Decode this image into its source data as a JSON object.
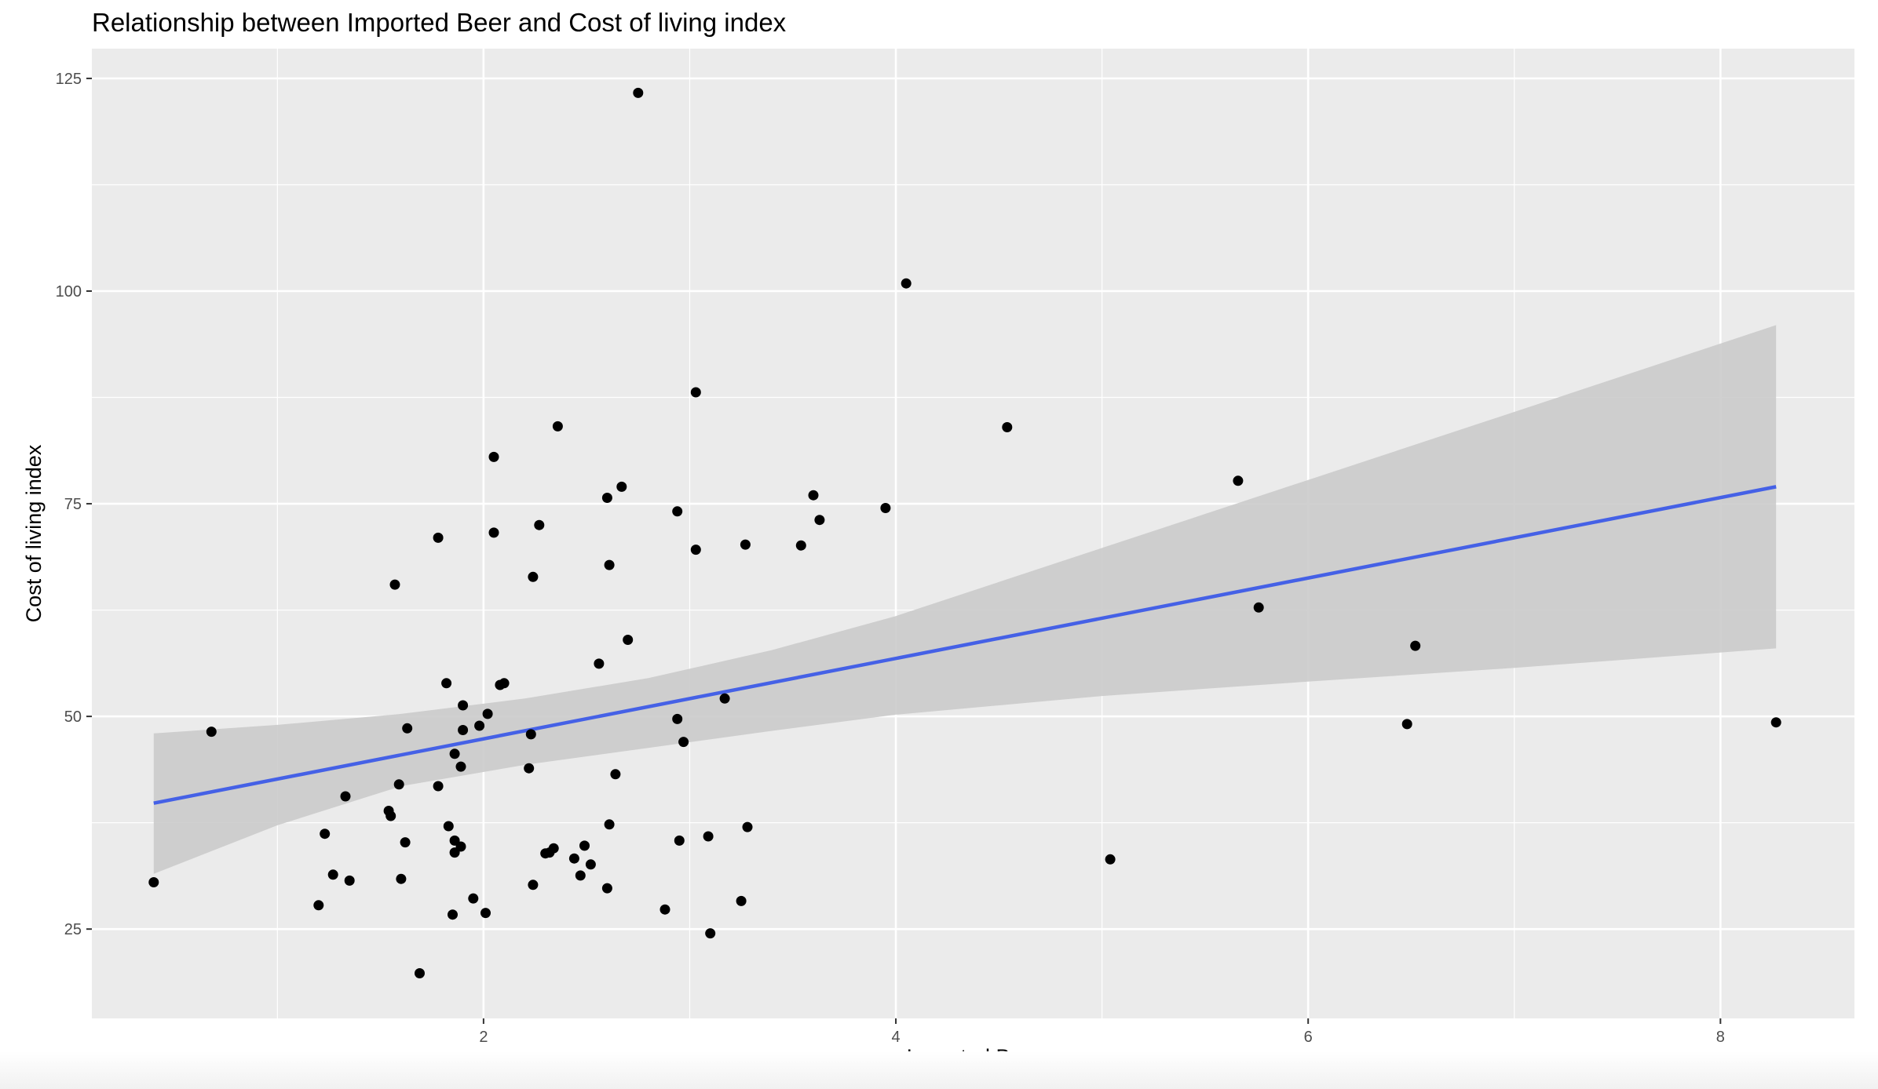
{
  "chart_data": {
    "type": "scatter",
    "title": "Relationship between Imported Beer and Cost of living index",
    "xlabel": "Imported Beer",
    "ylabel": "Cost of living index",
    "xlim": [
      0.1,
      8.65
    ],
    "ylim": [
      14.5,
      128.5
    ],
    "x_ticks": [
      2,
      4,
      6,
      8
    ],
    "y_ticks": [
      25,
      50,
      75,
      100,
      125
    ],
    "x_minor": [
      1,
      3,
      5,
      7
    ],
    "y_minor": [
      37.5,
      62.5,
      87.5,
      112.5
    ],
    "grid": true,
    "legend": "none",
    "colors": {
      "panel": "#ebebeb",
      "grid": "#ffffff",
      "points": "#000000",
      "fit": "#4561e6",
      "band": "#cbcbcb"
    },
    "points": [
      [
        0.4,
        30.5
      ],
      [
        0.68,
        48.2
      ],
      [
        1.2,
        27.8
      ],
      [
        1.23,
        36.2
      ],
      [
        1.27,
        31.4
      ],
      [
        1.33,
        40.6
      ],
      [
        1.35,
        30.7
      ],
      [
        1.54,
        38.9
      ],
      [
        1.55,
        38.3
      ],
      [
        1.57,
        65.5
      ],
      [
        1.59,
        42.0
      ],
      [
        1.6,
        30.9
      ],
      [
        1.62,
        35.2
      ],
      [
        1.63,
        48.6
      ],
      [
        1.69,
        19.8
      ],
      [
        1.78,
        71.0
      ],
      [
        1.78,
        41.8
      ],
      [
        1.82,
        53.9
      ],
      [
        1.83,
        37.1
      ],
      [
        1.85,
        26.7
      ],
      [
        1.86,
        45.6
      ],
      [
        1.86,
        35.4
      ],
      [
        1.86,
        34.0
      ],
      [
        1.89,
        34.7
      ],
      [
        1.89,
        44.1
      ],
      [
        1.9,
        51.3
      ],
      [
        1.9,
        48.4
      ],
      [
        1.95,
        28.6
      ],
      [
        1.98,
        48.9
      ],
      [
        2.01,
        26.9
      ],
      [
        2.02,
        50.3
      ],
      [
        2.05,
        80.5
      ],
      [
        2.05,
        71.6
      ],
      [
        2.08,
        53.7
      ],
      [
        2.1,
        53.9
      ],
      [
        2.22,
        43.9
      ],
      [
        2.23,
        47.9
      ],
      [
        2.24,
        66.4
      ],
      [
        2.24,
        30.2
      ],
      [
        2.27,
        72.5
      ],
      [
        2.3,
        33.9
      ],
      [
        2.32,
        34.0
      ],
      [
        2.34,
        34.5
      ],
      [
        2.36,
        84.1
      ],
      [
        2.44,
        33.3
      ],
      [
        2.47,
        31.3
      ],
      [
        2.49,
        34.8
      ],
      [
        2.52,
        32.6
      ],
      [
        2.56,
        56.2
      ],
      [
        2.6,
        75.7
      ],
      [
        2.6,
        29.8
      ],
      [
        2.61,
        67.8
      ],
      [
        2.61,
        37.3
      ],
      [
        2.64,
        43.2
      ],
      [
        2.67,
        77.0
      ],
      [
        2.7,
        59.0
      ],
      [
        2.75,
        123.3
      ],
      [
        2.88,
        27.3
      ],
      [
        2.94,
        74.1
      ],
      [
        2.94,
        49.7
      ],
      [
        2.95,
        35.4
      ],
      [
        2.97,
        47.0
      ],
      [
        3.03,
        88.1
      ],
      [
        3.03,
        69.6
      ],
      [
        3.09,
        35.9
      ],
      [
        3.1,
        24.5
      ],
      [
        3.17,
        52.1
      ],
      [
        3.25,
        28.3
      ],
      [
        3.27,
        70.2
      ],
      [
        3.28,
        37.0
      ],
      [
        3.54,
        70.1
      ],
      [
        3.6,
        76.0
      ],
      [
        3.63,
        73.1
      ],
      [
        3.95,
        74.5
      ],
      [
        4.05,
        100.9
      ],
      [
        4.54,
        84.0
      ],
      [
        5.04,
        33.2
      ],
      [
        5.66,
        77.7
      ],
      [
        5.76,
        62.8
      ],
      [
        6.48,
        49.1
      ],
      [
        6.52,
        58.3
      ],
      [
        8.27,
        49.3
      ]
    ],
    "fit_line": {
      "x": [
        0.4,
        8.27
      ],
      "y": [
        39.8,
        77.0
      ]
    },
    "confidence_band": {
      "x": [
        0.4,
        1.0,
        1.6,
        2.2,
        2.8,
        3.4,
        4.0,
        5.0,
        6.0,
        7.0,
        8.27
      ],
      "upper": [
        48.0,
        49.0,
        50.3,
        52.1,
        54.5,
        57.8,
        61.8,
        69.8,
        77.8,
        85.8,
        96.0
      ],
      "lower": [
        31.5,
        37.2,
        41.8,
        44.3,
        46.3,
        48.3,
        50.2,
        52.4,
        54.1,
        55.7,
        58.0
      ]
    }
  }
}
